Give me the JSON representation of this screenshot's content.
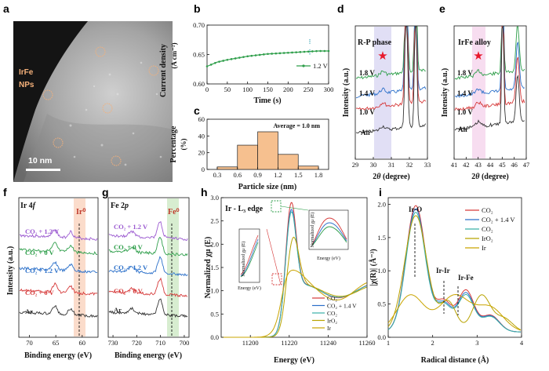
{
  "panels": {
    "a": {
      "letter": "a",
      "label_line1": "IrFe",
      "label_line2": "NPs",
      "scalebar": "10 nm"
    },
    "b": {
      "letter": "b",
      "ylabel": "Current density",
      "yunit": "(A cm⁻²)",
      "xlabel": "Time (s)",
      "legend": "1.2 V"
    },
    "c": {
      "letter": "c",
      "ylabel": "Percentage",
      "yunit": "(%)",
      "xlabel": "Particle size (nm)",
      "annotation": "Average = 1.0 nm"
    },
    "d": {
      "letter": "d",
      "ylabel": "Intensity (a.u.)",
      "xlabel_pre": "2",
      "xlabel_theta": "θ",
      "xlabel_post": " (degree)",
      "phase": "R-P phase",
      "labels": [
        "1.8 V",
        "1.4 V",
        "1.0 V",
        "Air"
      ]
    },
    "e": {
      "letter": "e",
      "ylabel": "Intensity (a.u.)",
      "xlabel_pre": "2",
      "xlabel_theta": "θ",
      "xlabel_post": " (degree)",
      "phase": "IrFe alloy",
      "labels": [
        "1.8 V",
        "1.4 V",
        "1.0 V",
        "Air"
      ]
    },
    "f": {
      "letter": "f",
      "title": "Ir 4f",
      "ylabel": "Intensity (a.u.)",
      "xlabel": "Binding energy (eV)",
      "marker": "Ir⁰",
      "labels": [
        "CO₂ + 1.2 V",
        "CO₂ + 0 V",
        "CO₂ + 1.2 V",
        "CO₂ + 0 V",
        "Ar"
      ]
    },
    "g": {
      "letter": "g",
      "title": "Fe 2p",
      "ylabel": "",
      "xlabel": "Binding energy (eV)",
      "marker": "Fe⁰",
      "labels": [
        "CO₂ + 1.2 V",
        "CO₂ + 0 V",
        "CO₂ + 1.2 V",
        "CO₂ + 0 V",
        "Ar"
      ]
    },
    "h": {
      "letter": "h",
      "title": "Ir - L₃ edge",
      "ylabel": "Normalized χμ (E)",
      "xlabel": "Energy (eV)",
      "inset_ylabel": "Normalized χμ (E)",
      "inset_xlabel": "Energy (eV)",
      "legend": [
        "CO₂",
        "CO₂ + 1.4 V",
        "CO₂",
        "IrO₂",
        "Ir"
      ]
    },
    "i": {
      "letter": "i",
      "ylabel": "|χ(R)| (Å⁻³)",
      "xlabel": "Radical distance (Å)",
      "peaks": [
        "Ir-O",
        "Ir-Ir",
        "Ir-Fe"
      ],
      "legend": [
        "CO₂",
        "CO₂ + 1.4 V",
        "CO₂",
        "IrO₂",
        "Ir"
      ]
    }
  },
  "colors": {
    "green": "#2e9e4a",
    "purple": "#9b59d0",
    "blue": "#2a6fc9",
    "red": "#d63a3a",
    "black": "#333333",
    "olive": "#b8a300",
    "teal": "#3ab0a8",
    "orange": "#f4b07a"
  },
  "chart_data": [
    {
      "type": "line",
      "panel": "b",
      "x": [
        0,
        25,
        50,
        75,
        100,
        125,
        150,
        175,
        200,
        225,
        250,
        275,
        300
      ],
      "series": [
        {
          "name": "1.2 V",
          "values": [
            0.63,
            0.637,
            0.641,
            0.644,
            0.647,
            0.649,
            0.651,
            0.652,
            0.653,
            0.654,
            0.655,
            0.656,
            0.656
          ]
        }
      ],
      "xlim": [
        0,
        300
      ],
      "ylim": [
        0.6,
        0.7
      ],
      "xticks": [
        0,
        50,
        100,
        150,
        200,
        250,
        300
      ],
      "yticks": [
        "0.60",
        "0.65",
        "0.70"
      ]
    },
    {
      "type": "bar",
      "panel": "c",
      "categories": [
        "0.3-0.6",
        "0.6-0.9",
        "0.9-1.2",
        "1.2-1.5",
        "1.5-1.8"
      ],
      "bin_edges": [
        0.3,
        0.6,
        0.9,
        1.2,
        1.5,
        1.8
      ],
      "values": [
        3,
        29,
        45,
        18,
        4
      ],
      "xlim": [
        0.15,
        1.95
      ],
      "ylim": [
        0,
        60
      ],
      "xticks": [
        "0.3",
        "0.6",
        "0.9",
        "1.2",
        "1.5",
        "1.8"
      ],
      "yticks": [
        "0",
        "20",
        "40",
        "60"
      ]
    },
    {
      "type": "line",
      "panel": "d",
      "xlim": [
        29,
        33
      ],
      "xticks": [
        "29",
        "30",
        "31",
        "32",
        "33"
      ]
    },
    {
      "type": "line",
      "panel": "e",
      "xlim": [
        41,
        47
      ],
      "xticks": [
        "41",
        "42",
        "43",
        "44",
        "45",
        "46",
        "47"
      ]
    },
    {
      "type": "line",
      "panel": "f",
      "xlim": [
        72,
        57
      ],
      "xticks": [
        "70",
        "65",
        "60"
      ]
    },
    {
      "type": "line",
      "panel": "g",
      "xlim": [
        732,
        698
      ],
      "xticks": [
        "730",
        "720",
        "710",
        "700"
      ]
    },
    {
      "type": "line",
      "panel": "h",
      "xlim": [
        11185,
        11260
      ],
      "ylim": [
        0,
        3
      ],
      "xticks": [
        "11200",
        "11220",
        "11240",
        "11260"
      ],
      "yticks": [
        "0.0",
        "0.5",
        "1.0",
        "1.5",
        "2.0",
        "2.5",
        "3.0"
      ]
    },
    {
      "type": "line",
      "panel": "i",
      "xlim": [
        1,
        4
      ],
      "ylim": [
        0,
        2.1
      ],
      "xticks": [
        "1",
        "2",
        "3",
        "4"
      ],
      "yticks": [
        "0.0",
        "0.5",
        "1.0",
        "1.5",
        "2.0"
      ]
    }
  ]
}
